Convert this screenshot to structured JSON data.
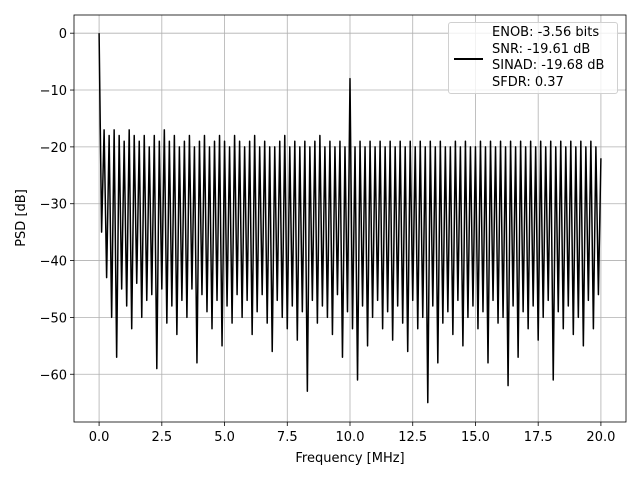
{
  "chart_data": {
    "type": "line",
    "xlabel": "Frequency [MHz]",
    "ylabel": "PSD [dB]",
    "xlim": [
      -1.0,
      21.0
    ],
    "ylim": [
      -68.4,
      3.2
    ],
    "xticks": [
      {
        "value": 0,
        "label": "0.0"
      },
      {
        "value": 2.5,
        "label": "2.5"
      },
      {
        "value": 5,
        "label": "5.0"
      },
      {
        "value": 7.5,
        "label": "7.5"
      },
      {
        "value": 10,
        "label": "10.0"
      },
      {
        "value": 12.5,
        "label": "12.5"
      },
      {
        "value": 15,
        "label": "15.0"
      },
      {
        "value": 17.5,
        "label": "17.5"
      },
      {
        "value": 20,
        "label": "20.0"
      }
    ],
    "yticks": [
      0,
      {
        "value": -10,
        "label": "−10"
      },
      {
        "value": -20,
        "label": "−20"
      },
      {
        "value": -30,
        "label": "−30"
      },
      {
        "value": -40,
        "label": "−40"
      },
      {
        "value": -50,
        "label": "−50"
      },
      {
        "value": -60,
        "label": "−60"
      }
    ],
    "grid": true,
    "legend_loc": "upper right",
    "x": [
      0,
      0.1,
      0.2,
      0.3,
      0.4,
      0.5,
      0.6,
      0.7,
      0.8,
      0.9,
      1,
      1.1,
      1.2,
      1.3,
      1.4,
      1.5,
      1.6,
      1.7,
      1.8,
      1.9,
      2,
      2.1,
      2.2,
      2.3,
      2.4,
      2.5,
      2.6,
      2.7,
      2.8,
      2.9,
      3,
      3.1,
      3.2,
      3.3,
      3.4,
      3.5,
      3.6,
      3.7,
      3.8,
      3.9,
      4,
      4.1,
      4.2,
      4.3,
      4.4,
      4.5,
      4.6,
      4.7,
      4.8,
      4.9,
      5,
      5.1,
      5.2,
      5.3,
      5.4,
      5.5,
      5.6,
      5.7,
      5.8,
      5.9,
      6,
      6.1,
      6.2,
      6.3,
      6.4,
      6.5,
      6.6,
      6.7,
      6.8,
      6.9,
      7,
      7.1,
      7.2,
      7.3,
      7.4,
      7.5,
      7.6,
      7.7,
      7.8,
      7.9,
      8,
      8.1,
      8.2,
      8.3,
      8.4,
      8.5,
      8.6,
      8.7,
      8.8,
      8.9,
      9,
      9.1,
      9.2,
      9.3,
      9.4,
      9.5,
      9.6,
      9.7,
      9.8,
      9.9,
      10,
      10.1,
      10.2,
      10.3,
      10.4,
      10.5,
      10.6,
      10.7,
      10.8,
      10.9,
      11,
      11.1,
      11.2,
      11.3,
      11.4,
      11.5,
      11.6,
      11.7,
      11.8,
      11.9,
      12,
      12.1,
      12.2,
      12.3,
      12.4,
      12.5,
      12.6,
      12.7,
      12.8,
      12.9,
      13,
      13.1,
      13.2,
      13.3,
      13.4,
      13.5,
      13.6,
      13.7,
      13.8,
      13.9,
      14,
      14.1,
      14.2,
      14.3,
      14.4,
      14.5,
      14.6,
      14.7,
      14.8,
      14.9,
      15,
      15.1,
      15.2,
      15.3,
      15.4,
      15.5,
      15.6,
      15.7,
      15.8,
      15.9,
      16,
      16.1,
      16.2,
      16.3,
      16.4,
      16.5,
      16.6,
      16.7,
      16.8,
      16.9,
      17,
      17.1,
      17.2,
      17.3,
      17.4,
      17.5,
      17.6,
      17.7,
      17.8,
      17.9,
      18,
      18.1,
      18.2,
      18.3,
      18.4,
      18.5,
      18.6,
      18.7,
      18.8,
      18.9,
      19,
      19.1,
      19.2,
      19.3,
      19.4,
      19.5,
      19.6,
      19.7,
      19.8,
      19.9,
      20
    ],
    "series": [
      {
        "name": "ENOB: -3.56 bits\nSNR: -19.61 dB\nSINAD: -19.68 dB\nSFDR: 0.37",
        "color": "#000000",
        "values": [
          0,
          -35,
          -17,
          -43,
          -18,
          -50,
          -17,
          -57,
          -18,
          -45,
          -19,
          -48,
          -17,
          -52,
          -18,
          -44,
          -19,
          -50,
          -18,
          -47,
          -20,
          -46,
          -18,
          -59,
          -19,
          -45,
          -17,
          -51,
          -19,
          -48,
          -18,
          -53,
          -20,
          -47,
          -19,
          -50,
          -18,
          -45,
          -20,
          -58,
          -19,
          -46,
          -18,
          -49,
          -20,
          -52,
          -19,
          -47,
          -18,
          -55,
          -19,
          -48,
          -20,
          -51,
          -18,
          -46,
          -19,
          -50,
          -20,
          -47,
          -19,
          -53,
          -18,
          -49,
          -20,
          -46,
          -19,
          -51,
          -20,
          -56,
          -20,
          -47,
          -19,
          -50,
          -18,
          -52,
          -20,
          -48,
          -19,
          -54,
          -20,
          -49,
          -19,
          -63,
          -20,
          -47,
          -19,
          -51,
          -18,
          -48,
          -20,
          -50,
          -19,
          -53,
          -20,
          -46,
          -19,
          -57,
          -20,
          -49,
          -8,
          -52,
          -20,
          -61,
          -19,
          -48,
          -20,
          -55,
          -19,
          -50,
          -20,
          -47,
          -19,
          -52,
          -20,
          -49,
          -19,
          -54,
          -20,
          -48,
          -19,
          -51,
          -20,
          -56,
          -19,
          -47,
          -20,
          -52,
          -19,
          -50,
          -20,
          -65,
          -19,
          -48,
          -20,
          -58,
          -19,
          -51,
          -20,
          -49,
          -20,
          -53,
          -19,
          -47,
          -20,
          -55,
          -19,
          -50,
          -20,
          -48,
          -20,
          -52,
          -19,
          -49,
          -20,
          -58,
          -19,
          -47,
          -20,
          -51,
          -19,
          -50,
          -20,
          -62,
          -19,
          -48,
          -20,
          -57,
          -19,
          -49,
          -20,
          -52,
          -19,
          -48,
          -20,
          -54,
          -19,
          -50,
          -20,
          -47,
          -19,
          -61,
          -20,
          -49,
          -19,
          -52,
          -20,
          -48,
          -19,
          -53,
          -20,
          -50,
          -19,
          -55,
          -20,
          -47,
          -19,
          -52,
          -20,
          -46,
          -22
        ]
      }
    ]
  }
}
